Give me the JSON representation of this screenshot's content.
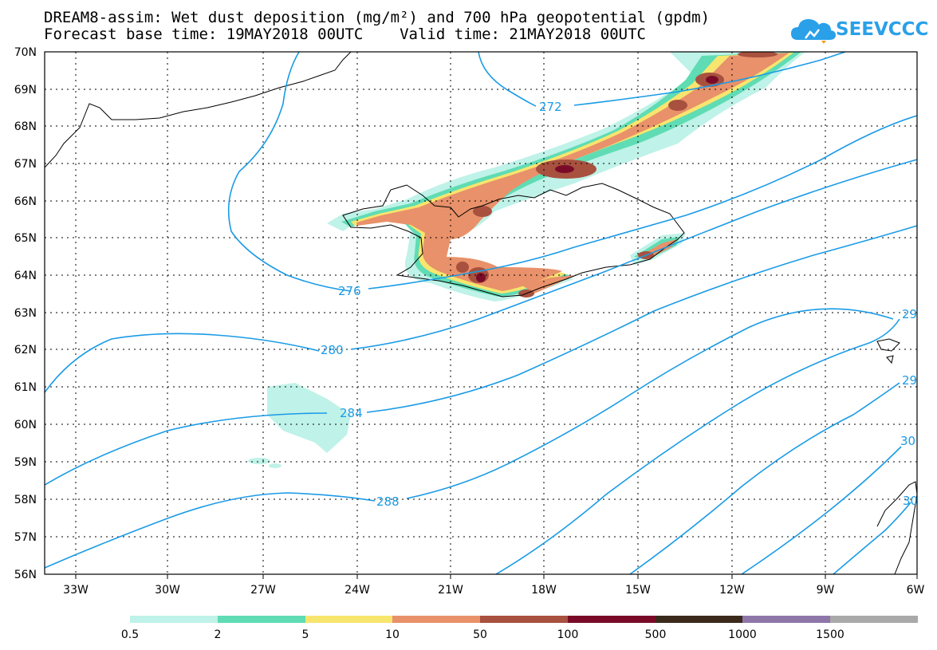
{
  "header": {
    "title_line1": "DREAM8-assim: Wet dust deposition (mg/m²) and 700 hPa geopotential (gpdm)",
    "title_line2": "Forecast base time: 19MAY2018 00UTC    Valid time: 21MAY2018 00UTC",
    "logo_text": "SEEVCCC"
  },
  "map": {
    "lat_labels": [
      "70N",
      "69N",
      "68N",
      "67N",
      "66N",
      "65N",
      "64N",
      "63N",
      "62N",
      "61N",
      "60N",
      "59N",
      "58N",
      "57N",
      "56N"
    ],
    "lon_labels": [
      "33W",
      "30W",
      "27W",
      "24W",
      "21W",
      "18W",
      "15W",
      "12W",
      "9W",
      "6W"
    ],
    "contour_color": "#1a9be6",
    "contour_labels": [
      "272",
      "276",
      "280",
      "284",
      "288",
      "29",
      "29",
      "30",
      "30"
    ]
  },
  "colorbar": {
    "labels": [
      "0.5",
      "2",
      "5",
      "10",
      "50",
      "100",
      "500",
      "1000",
      "1500"
    ],
    "colors": [
      "#bff2e8",
      "#5fdcb4",
      "#f8e56e",
      "#e8916a",
      "#a8513f",
      "#7a0b28",
      "#3b2a1c",
      "#8e76a8",
      "#a9a9a9"
    ]
  }
}
